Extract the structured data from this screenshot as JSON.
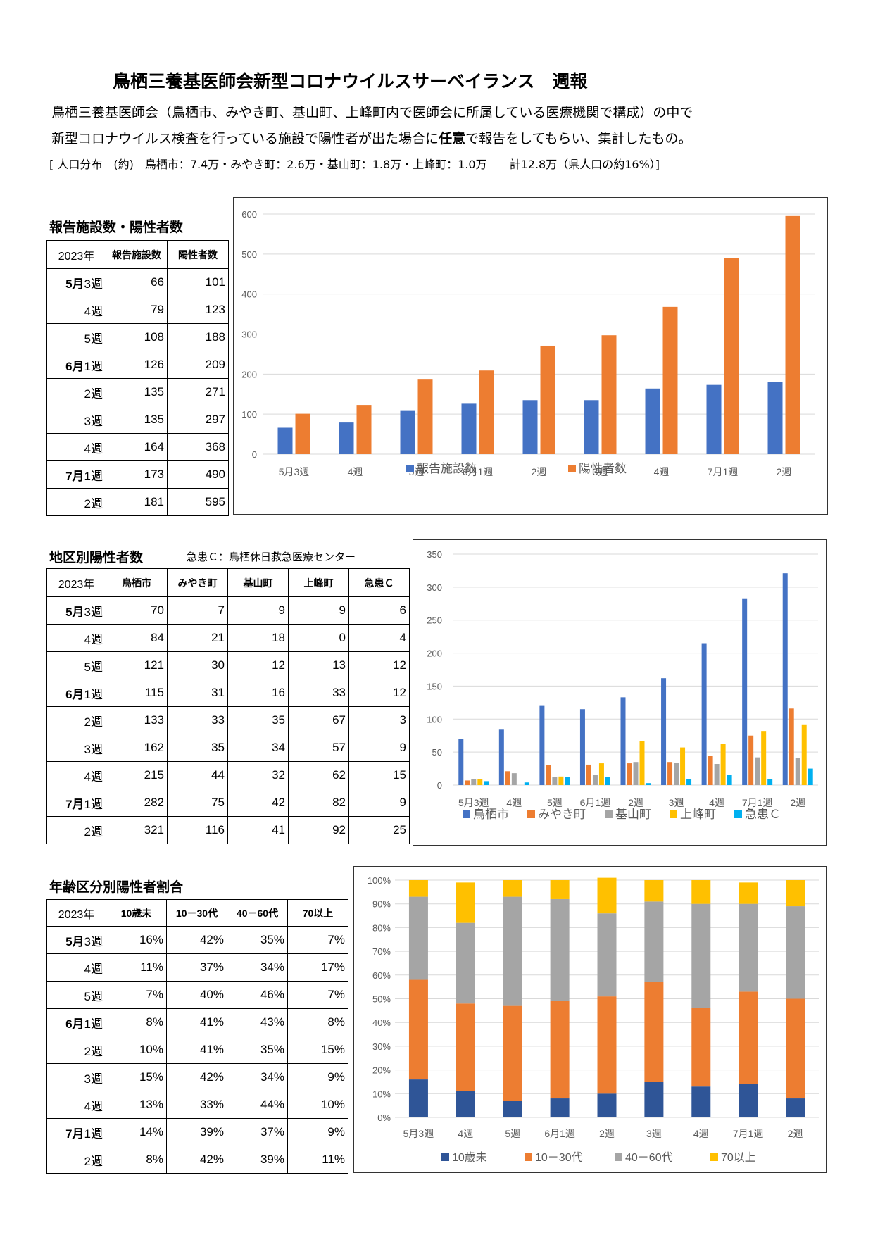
{
  "header": {
    "title": "鳥栖三養基医師会新型コロナウイルスサーベイランス　週報",
    "desc1": "鳥栖三養基医師会（鳥栖市、みやき町、基山町、上峰町内で医師会に所属している医療機関で構成）の中で",
    "desc2_pre": "新型コロナウイルス検査を行っている施設で陽性者が出た場合に",
    "desc2_bold": "任意",
    "desc2_post": "で報告をしてもらい、集計したもの。",
    "desc3": "[ 人口分布　(約)　鳥栖市：7.4万・みやき町：2.6万・基山町：1.8万・上峰町：1.0万　　計12.8万（県人口の約16%）]"
  },
  "weeks": [
    {
      "month": "5月",
      "week": "3週"
    },
    {
      "month": "",
      "week": "4週"
    },
    {
      "month": "",
      "week": "5週"
    },
    {
      "month": "6月",
      "week": "1週"
    },
    {
      "month": "",
      "week": "2週"
    },
    {
      "month": "",
      "week": "3週"
    },
    {
      "month": "",
      "week": "4週"
    },
    {
      "month": "7月",
      "week": "1週"
    },
    {
      "month": "",
      "week": "2週"
    }
  ],
  "section1": {
    "title": "報告施設数・陽性者数",
    "headers": [
      "2023年",
      "報告施設数",
      "陽性者数"
    ],
    "rows": [
      [
        66,
        101
      ],
      [
        79,
        123
      ],
      [
        108,
        188
      ],
      [
        126,
        209
      ],
      [
        135,
        271
      ],
      [
        135,
        297
      ],
      [
        164,
        368
      ],
      [
        173,
        490
      ],
      [
        181,
        595
      ]
    ]
  },
  "section2": {
    "title": "地区別陽性者数",
    "note": "急患Ｃ：鳥栖休日救急医療センター",
    "headers": [
      "2023年",
      "鳥栖市",
      "みやき町",
      "基山町",
      "上峰町",
      "急患Ｃ"
    ],
    "rows": [
      [
        70,
        7,
        9,
        9,
        6
      ],
      [
        84,
        21,
        18,
        0,
        4
      ],
      [
        121,
        30,
        12,
        13,
        12
      ],
      [
        115,
        31,
        16,
        33,
        12
      ],
      [
        133,
        33,
        35,
        67,
        3
      ],
      [
        162,
        35,
        34,
        57,
        9
      ],
      [
        215,
        44,
        32,
        62,
        15
      ],
      [
        282,
        75,
        42,
        82,
        9
      ],
      [
        321,
        116,
        41,
        92,
        25
      ]
    ]
  },
  "section3": {
    "title": "年齢区分別陽性者割合",
    "headers": [
      "2023年",
      "10歳未",
      "10－30代",
      "40－60代",
      "70以上"
    ],
    "rows": [
      [
        "16%",
        "42%",
        "35%",
        "7%"
      ],
      [
        "11%",
        "37%",
        "34%",
        "17%"
      ],
      [
        "7%",
        "40%",
        "46%",
        "7%"
      ],
      [
        "8%",
        "41%",
        "43%",
        "8%"
      ],
      [
        "10%",
        "41%",
        "35%",
        "15%"
      ],
      [
        "15%",
        "42%",
        "34%",
        "9%"
      ],
      [
        "13%",
        "33%",
        "44%",
        "10%"
      ],
      [
        "14%",
        "39%",
        "37%",
        "9%"
      ],
      [
        "8%",
        "42%",
        "39%",
        "11%"
      ]
    ]
  },
  "chart_data": [
    {
      "type": "bar",
      "categories": [
        "5月3週",
        "4週",
        "5週",
        "6月1週",
        "2週",
        "3週",
        "4週",
        "7月1週",
        "2週"
      ],
      "series": [
        {
          "name": "報告施設数",
          "color": "#4472C4",
          "values": [
            66,
            79,
            108,
            126,
            135,
            135,
            164,
            173,
            181
          ]
        },
        {
          "name": "陽性者数",
          "color": "#ED7D31",
          "values": [
            101,
            123,
            188,
            209,
            271,
            297,
            368,
            490,
            595
          ]
        }
      ],
      "ylim": [
        0,
        600
      ],
      "yticks": [
        0,
        100,
        200,
        300,
        400,
        500,
        600
      ],
      "legend": "bottom"
    },
    {
      "type": "bar",
      "categories": [
        "5月3週",
        "4週",
        "5週",
        "6月1週",
        "2週",
        "3週",
        "4週",
        "7月1週",
        "2週"
      ],
      "series": [
        {
          "name": "鳥栖市",
          "color": "#4472C4",
          "values": [
            70,
            84,
            121,
            115,
            133,
            162,
            215,
            282,
            321
          ]
        },
        {
          "name": "みやき町",
          "color": "#ED7D31",
          "values": [
            7,
            21,
            30,
            31,
            33,
            35,
            44,
            75,
            116
          ]
        },
        {
          "name": "基山町",
          "color": "#A5A5A5",
          "values": [
            9,
            18,
            12,
            16,
            35,
            34,
            32,
            42,
            41
          ]
        },
        {
          "name": "上峰町",
          "color": "#FFC000",
          "values": [
            9,
            0,
            13,
            33,
            67,
            57,
            62,
            82,
            92
          ]
        },
        {
          "name": "急患Ｃ",
          "color": "#00B0F0",
          "values": [
            6,
            4,
            12,
            12,
            3,
            9,
            15,
            9,
            25
          ]
        }
      ],
      "ylim": [
        0,
        350
      ],
      "yticks": [
        0,
        50,
        100,
        150,
        200,
        250,
        300,
        350
      ],
      "legend": "bottom"
    },
    {
      "type": "bar",
      "stacked": true,
      "categories": [
        "5月3週",
        "4週",
        "5週",
        "6月1週",
        "2週",
        "3週",
        "4週",
        "7月1週",
        "2週"
      ],
      "series": [
        {
          "name": "10歳未",
          "color": "#2F5597",
          "values": [
            16,
            11,
            7,
            8,
            10,
            15,
            13,
            14,
            8
          ]
        },
        {
          "name": "10－30代",
          "color": "#ED7D31",
          "values": [
            42,
            37,
            40,
            41,
            41,
            42,
            33,
            39,
            42
          ]
        },
        {
          "name": "40－60代",
          "color": "#A5A5A5",
          "values": [
            35,
            34,
            46,
            43,
            35,
            34,
            44,
            37,
            39
          ]
        },
        {
          "name": "70以上",
          "color": "#FFC000",
          "values": [
            7,
            17,
            7,
            8,
            15,
            9,
            10,
            9,
            11
          ]
        }
      ],
      "ylim": [
        0,
        100
      ],
      "yticks": [
        "0%",
        "10%",
        "20%",
        "30%",
        "40%",
        "50%",
        "60%",
        "70%",
        "80%",
        "90%",
        "100%"
      ],
      "legend": "bottom"
    }
  ]
}
